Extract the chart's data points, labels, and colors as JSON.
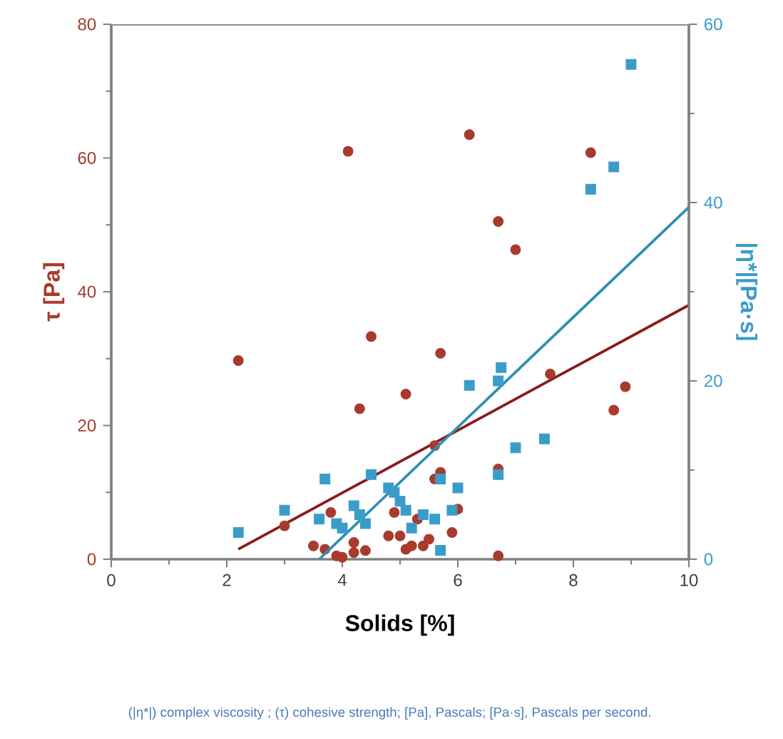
{
  "chart_data": {
    "type": "scatter",
    "xlabel": "Solids [%]",
    "ylabel": "τ [Pa]",
    "y2label": "|η*|[Pa·s]",
    "xlim": [
      0,
      10
    ],
    "xticks": [
      0,
      2,
      4,
      6,
      8,
      10
    ],
    "ylim": [
      0,
      80
    ],
    "yticks": [
      0,
      20,
      40,
      60,
      80
    ],
    "y2lim": [
      0,
      60
    ],
    "y2ticks": [
      0,
      20,
      40,
      60
    ],
    "series": [
      {
        "marker": "circle",
        "color": "#a83a2e",
        "x": [
          2.2,
          3.0,
          3.5,
          3.7,
          3.8,
          3.9,
          4.0,
          4.1,
          4.2,
          4.2,
          4.3,
          4.4,
          4.5,
          4.8,
          4.9,
          5.0,
          5.1,
          5.1,
          5.2,
          5.3,
          5.4,
          5.5,
          5.6,
          5.6,
          5.7,
          5.7,
          5.9,
          6.0,
          6.2,
          6.7,
          6.7,
          6.7,
          7.0,
          7.6,
          8.3,
          8.7,
          8.9
        ],
        "values": [
          29.7,
          5,
          2,
          1.5,
          7,
          0.5,
          0.3,
          61,
          2.5,
          1,
          22.5,
          1.3,
          33.3,
          3.5,
          7,
          3.5,
          24.7,
          1.5,
          2,
          6,
          2,
          3,
          17,
          12,
          30.8,
          13,
          4,
          7.5,
          63.5,
          13.5,
          50.5,
          0.5,
          46.3,
          27.7,
          60.8,
          22.3,
          25.8
        ]
      },
      {
        "marker": "square",
        "axis": "y2",
        "color": "#3a9cc8",
        "x": [
          2.2,
          3.0,
          3.6,
          3.7,
          3.9,
          4.0,
          4.2,
          4.3,
          4.4,
          4.5,
          4.8,
          4.9,
          5.0,
          5.1,
          5.2,
          5.4,
          5.6,
          5.7,
          5.7,
          5.9,
          6.0,
          6.2,
          6.7,
          6.75,
          6.7,
          7.0,
          7.5,
          8.3,
          8.7,
          9.0
        ],
        "values": [
          3,
          5.5,
          4.5,
          9,
          4,
          3.5,
          6,
          5,
          4,
          9.5,
          8,
          7.5,
          6.5,
          5.5,
          3.5,
          5,
          4.5,
          1,
          9,
          5.5,
          8,
          19.5,
          9.5,
          21.5,
          20,
          12.5,
          13.5,
          41.5,
          44,
          55.5
        ]
      },
      {
        "type": "line",
        "color": "#8b1a1a",
        "x": [
          2.2,
          10
        ],
        "values": [
          1.5,
          38
        ]
      },
      {
        "type": "line",
        "axis": "y2",
        "color": "#2f8fb5",
        "x": [
          3.6,
          10
        ],
        "values": [
          0,
          39.5
        ]
      }
    ],
    "annotations": [
      "(|η*|) complex viscosity ; (τ) cohesive strength; [Pa], Pascals; [Pa·s], Pascals per second."
    ]
  }
}
